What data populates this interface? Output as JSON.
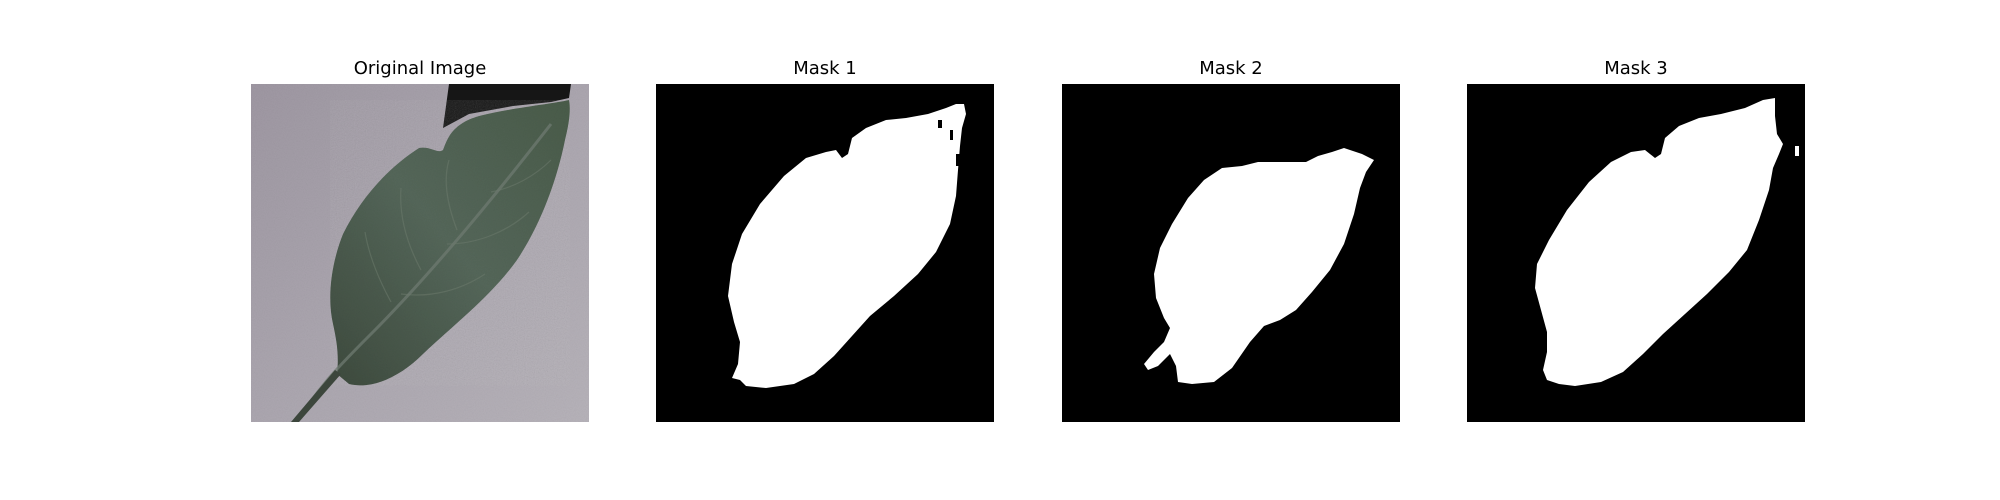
{
  "figure": {
    "panels": [
      {
        "title": "Original Image",
        "kind": "photo"
      },
      {
        "title": "Mask 1",
        "kind": "mask"
      },
      {
        "title": "Mask 2",
        "kind": "mask"
      },
      {
        "title": "Mask 3",
        "kind": "mask"
      }
    ],
    "colors": {
      "background": "#ffffff",
      "photo_background": "#a9a4ad",
      "leaf": "#4d5d4c",
      "mask_background": "#000000",
      "mask_foreground": "#ffffff"
    }
  }
}
